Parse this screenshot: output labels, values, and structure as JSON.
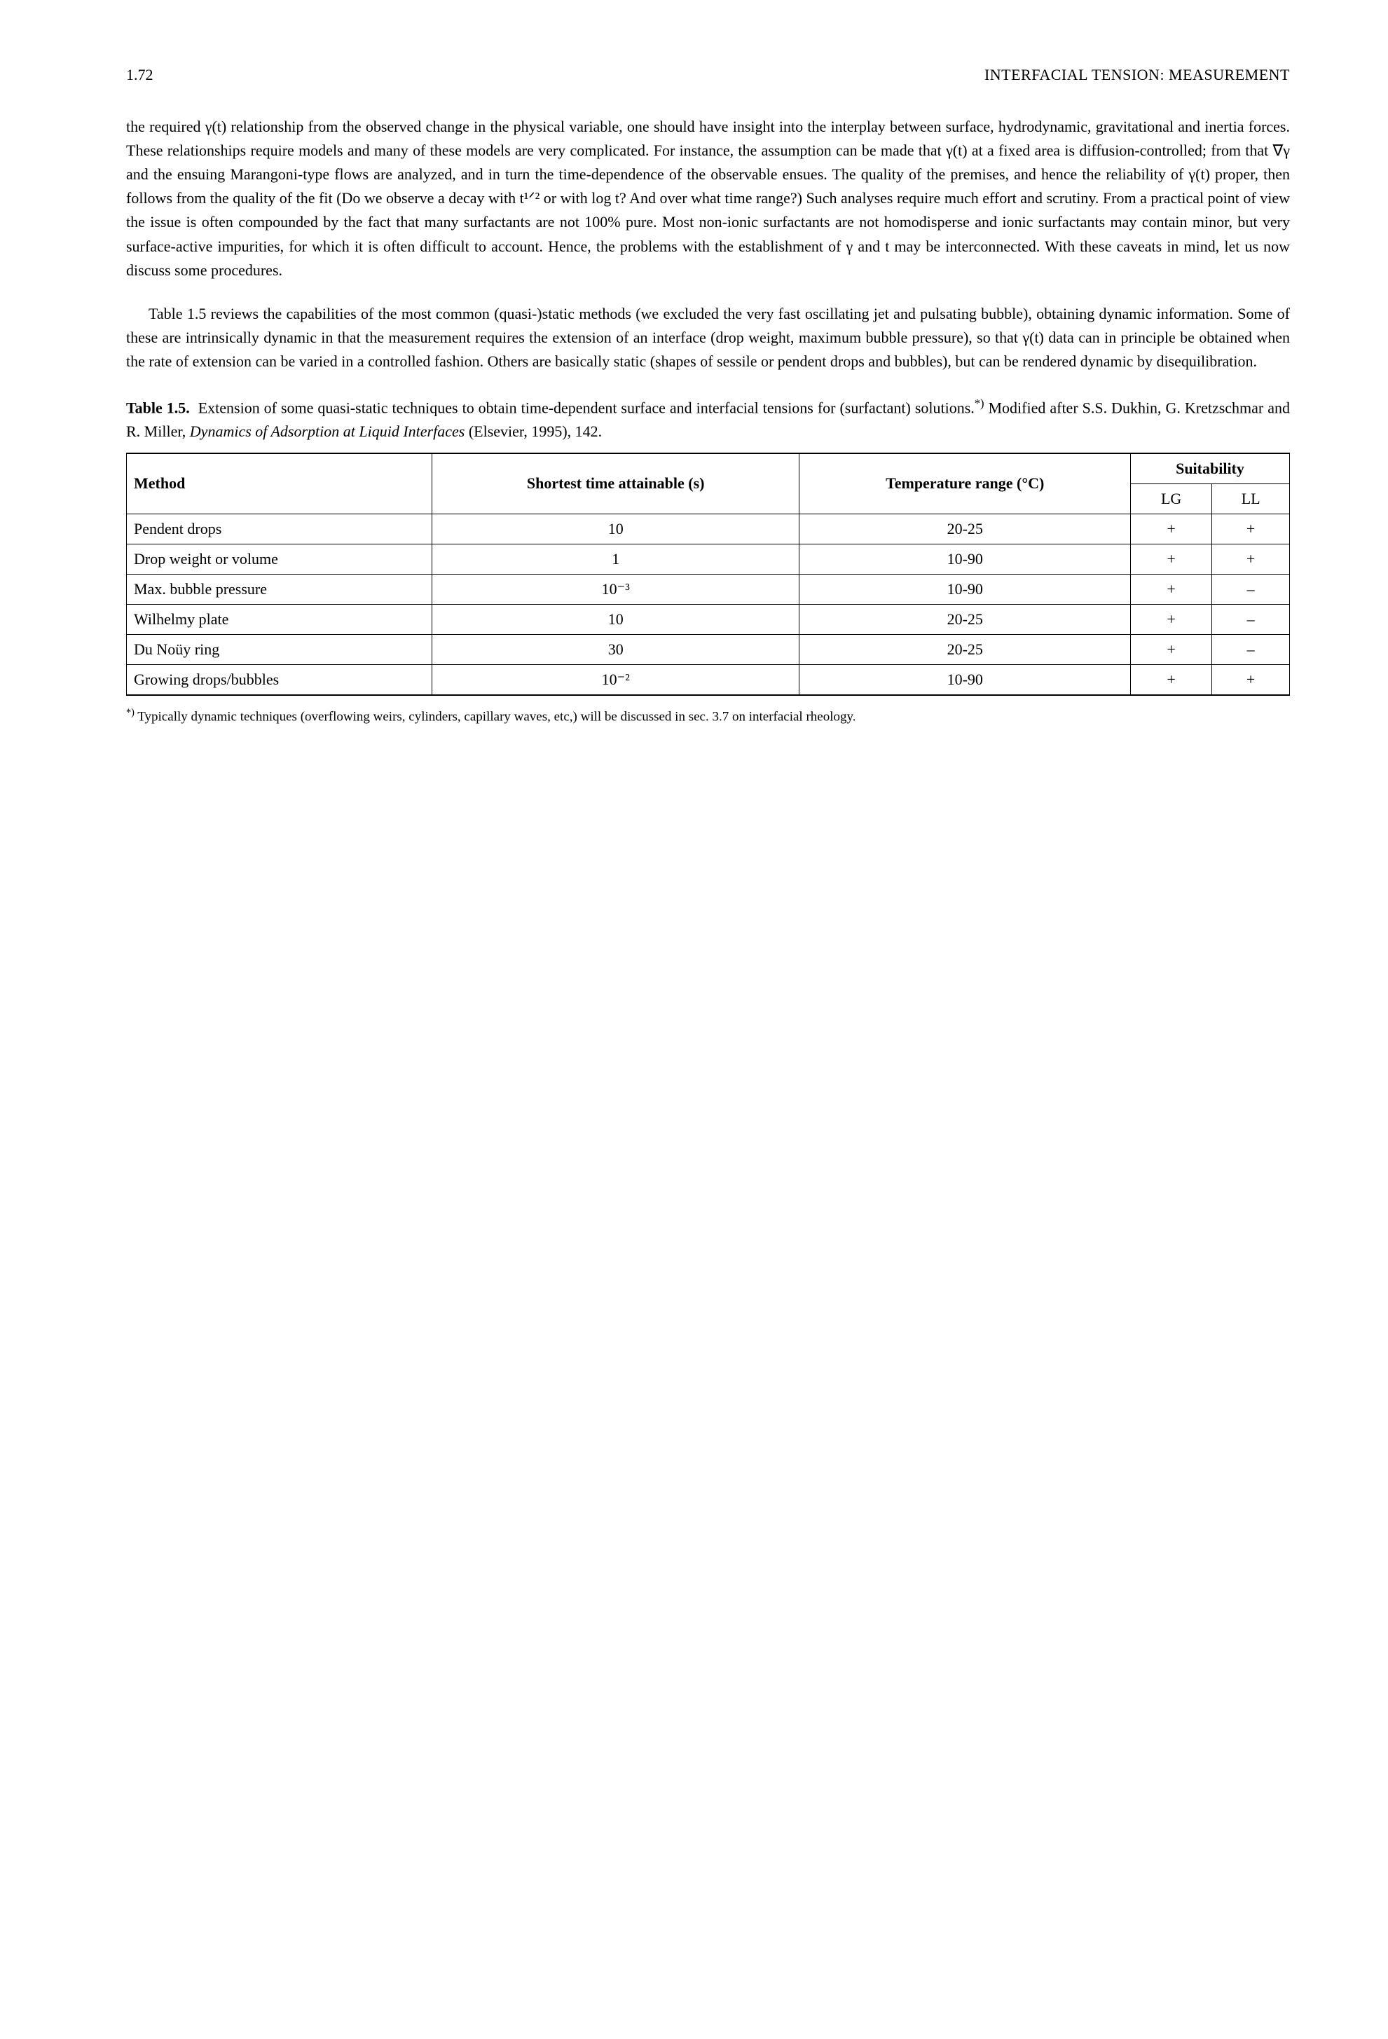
{
  "header": {
    "page_number": "1.72",
    "section": "INTERFACIAL TENSION: MEASUREMENT"
  },
  "paragraphs": {
    "p1": "the required γ(t) relationship from the observed change in the physical variable, one should have insight into the interplay between surface, hydrodynamic, gravitational and inertia forces. These relationships require models and many of these models are very complicated. For instance, the assumption can be made that γ(t) at a fixed area is diffusion-controlled; from that ∇γ and the ensuing Marangoni-type flows are analyzed, and in turn the time-dependence of the observable ensues. The quality of the premises, and hence the reliability of γ(t) proper, then follows from the quality of the fit (Do we observe a decay with t¹ᐟ² or with log t? And over what time range?) Such analyses require much effort and scrutiny. From a practical point of view the issue is often compounded by the fact that many surfactants are not 100% pure. Most non-ionic surfactants are not homodisperse and ionic surfactants may contain minor, but very surface-active impurities, for which it is often difficult to account. Hence, the problems with the establishment of γ and t may be interconnected. With these caveats in mind, let us now discuss some procedures.",
    "p2": "Table 1.5 reviews the capabilities of the most common (quasi-)static methods (we excluded the very fast oscillating jet and pulsating bubble), obtaining dynamic information. Some of these are intrinsically dynamic in that the measurement requires the extension of an interface (drop weight, maximum bubble pressure), so that γ(t) data can in principle be obtained when the rate of extension can be varied in a controlled fashion. Others are basically static (shapes of sessile or pendent drops and bubbles), but can be rendered dynamic by disequilibration."
  },
  "table_caption": {
    "label": "Table 1.5.",
    "text_pre": "Extension of some quasi-static techniques to obtain time-dependent surface and interfacial tensions for (surfactant) solutions.",
    "sup": "*)",
    "text_post": " Modified after S.S. Dukhin, G. Kretzschmar and R. Miller, ",
    "italic": "Dynamics of Adsorption at Liquid Interfaces",
    "text_tail": " (Elsevier, 1995), 142."
  },
  "table": {
    "headers": {
      "method": "Method",
      "time": "Shortest time attainable (s)",
      "temp": "Temperature range (°C)",
      "suit": "Suitability",
      "lg": "LG",
      "ll": "LL"
    },
    "rows": [
      {
        "method": "Pendent drops",
        "time": "10",
        "temp": "20-25",
        "lg": "+",
        "ll": "+"
      },
      {
        "method": "Drop weight or volume",
        "time": "1",
        "temp": "10-90",
        "lg": "+",
        "ll": "+"
      },
      {
        "method": "Max. bubble pressure",
        "time": "10⁻³",
        "temp": "10-90",
        "lg": "+",
        "ll": "–"
      },
      {
        "method": "Wilhelmy plate",
        "time": "10",
        "temp": "20-25",
        "lg": "+",
        "ll": "–"
      },
      {
        "method": "Du Noüy ring",
        "time": "30",
        "temp": "20-25",
        "lg": "+",
        "ll": "–"
      },
      {
        "method": "Growing drops/bubbles",
        "time": "10⁻²",
        "temp": "10-90",
        "lg": "+",
        "ll": "+"
      }
    ]
  },
  "footnote": {
    "sup": "*)",
    "text": " Typically dynamic techniques (overflowing weirs, cylinders, capillary waves, etc,) will be discussed in sec. 3.7 on interfacial rheology."
  }
}
